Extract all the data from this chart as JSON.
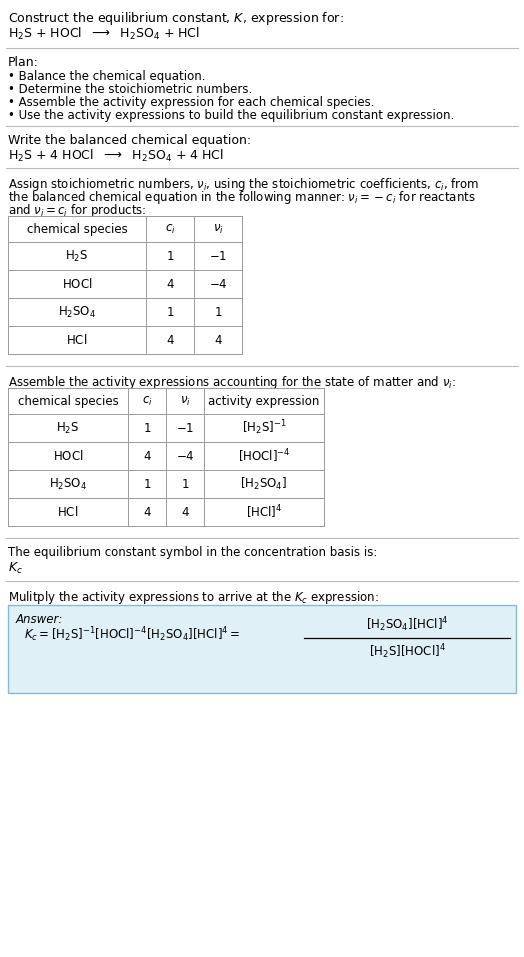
{
  "bg_color": "#ffffff",
  "title_line1": "Construct the equilibrium constant, $K$, expression for:",
  "title_line2_parts": [
    "$\\mathrm{H_2S}$",
    " + HOCl  ",
    "$\\longrightarrow$",
    "  $\\mathrm{H_2SO_4}$",
    " + HCl"
  ],
  "plan_header": "Plan:",
  "plan_items": [
    "• Balance the chemical equation.",
    "• Determine the stoichiometric numbers.",
    "• Assemble the activity expression for each chemical species.",
    "• Use the activity expressions to build the equilibrium constant expression."
  ],
  "balanced_header": "Write the balanced chemical equation:",
  "balanced_eq": "$\\mathrm{H_2S}$ + 4 HOCl  $\\longrightarrow$  $\\mathrm{H_2SO_4}$ + 4 HCl",
  "stoich_intro": "Assign stoichiometric numbers, $\\nu_i$, using the stoichiometric coefficients, $c_i$, from\nthe balanced chemical equation in the following manner: $\\nu_i = -c_i$ for reactants\nand $\\nu_i = c_i$ for products:",
  "table1_cols": [
    "chemical species",
    "$c_i$",
    "$\\nu_i$"
  ],
  "table1_rows": [
    [
      "$\\mathrm{H_2S}$",
      "1",
      "$-1$"
    ],
    [
      "$\\mathrm{HOCl}$",
      "4",
      "$-4$"
    ],
    [
      "$\\mathrm{H_2SO_4}$",
      "1",
      "1"
    ],
    [
      "$\\mathrm{HCl}$",
      "4",
      "4"
    ]
  ],
  "activity_header": "Assemble the activity expressions accounting for the state of matter and $\\nu_i$:",
  "table2_cols": [
    "chemical species",
    "$c_i$",
    "$\\nu_i$",
    "activity expression"
  ],
  "table2_rows": [
    [
      "$\\mathrm{H_2S}$",
      "1",
      "$-1$",
      "$[\\mathrm{H_2S}]^{-1}$"
    ],
    [
      "$\\mathrm{HOCl}$",
      "4",
      "$-4$",
      "$[\\mathrm{HOCl}]^{-4}$"
    ],
    [
      "$\\mathrm{H_2SO_4}$",
      "1",
      "1",
      "$[\\mathrm{H_2SO_4}]$"
    ],
    [
      "$\\mathrm{HCl}$",
      "4",
      "4",
      "$[\\mathrm{HCl}]^4$"
    ]
  ],
  "kc_header": "The equilibrium constant symbol in the concentration basis is:",
  "kc_symbol": "$K_c$",
  "multiply_header": "Mulitply the activity expressions to arrive at the $K_c$ expression:",
  "answer_label": "Answer:",
  "answer_box_color": "#dff0f7",
  "answer_box_border": "#8bb8cc",
  "line_color": "#bbbbbb"
}
